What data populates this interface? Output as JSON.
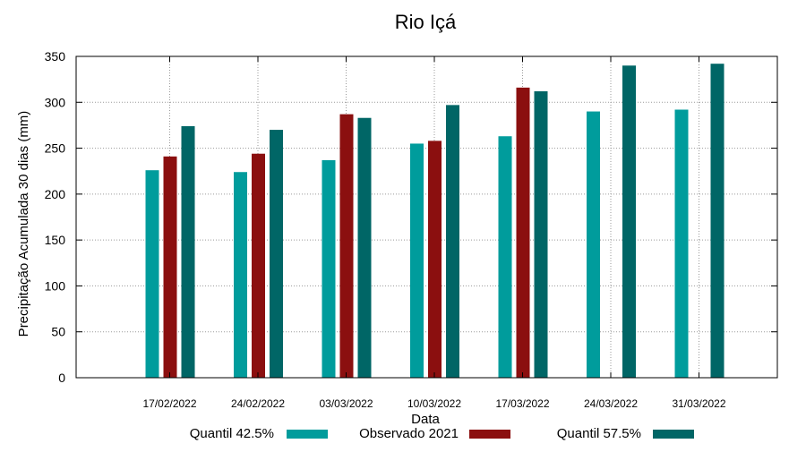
{
  "chart_data": {
    "type": "bar",
    "title": "Rio Içá",
    "xlabel": "Data",
    "ylabel": "Precipitação Acumulada 30 dias (mm)",
    "ylim": [
      0,
      350
    ],
    "yticks": [
      0,
      50,
      100,
      150,
      200,
      250,
      300,
      350
    ],
    "grid": true,
    "legend_position": "bottom",
    "categories": [
      "17/02/2022",
      "24/02/2022",
      "03/03/2022",
      "10/03/2022",
      "17/03/2022",
      "24/03/2022",
      "31/03/2022"
    ],
    "series": [
      {
        "name": "Quantil 42.5%",
        "color": "#009c9c",
        "values": [
          226,
          224,
          237,
          255,
          263,
          290,
          292
        ]
      },
      {
        "name": "Observado 2021",
        "color": "#8b0f0f",
        "values": [
          241,
          244,
          287,
          258,
          316,
          null,
          null
        ]
      },
      {
        "name": "Quantil 57.5%",
        "color": "#006666",
        "values": [
          274,
          270,
          283,
          297,
          312,
          340,
          342
        ]
      }
    ]
  }
}
